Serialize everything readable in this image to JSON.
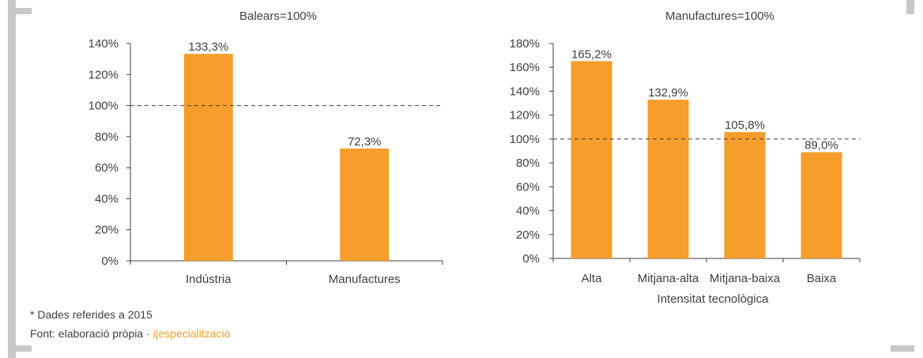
{
  "colors": {
    "bar": "#f59e2b",
    "axis": "#404040",
    "frame": "#c8c8c8",
    "accent": "#f59e2b"
  },
  "chart_data": [
    {
      "type": "bar",
      "title": "Balears=100%",
      "categories": [
        "Indústria",
        "Manufactures"
      ],
      "values": [
        133.3,
        72.3
      ],
      "value_labels": [
        "133,3%",
        "72,3%"
      ],
      "xlabel": "",
      "ylabel": "",
      "ylim": [
        0,
        140
      ],
      "yticks": [
        "0%",
        "20%",
        "40%",
        "60%",
        "80%",
        "100%",
        "120%",
        "140%"
      ],
      "reference_line": 100,
      "grid": false,
      "legend": "none"
    },
    {
      "type": "bar",
      "title": "Manufactures=100%",
      "categories": [
        "Alta",
        "Mitjana-alta",
        "Mitjana-baixa",
        "Baixa"
      ],
      "values": [
        165.2,
        132.9,
        105.8,
        89.0
      ],
      "value_labels": [
        "165,2%",
        "132,9%",
        "105,8%",
        "89,0%"
      ],
      "xlabel": "Intensitat tecnològica",
      "ylabel": "",
      "ylim": [
        0,
        180
      ],
      "yticks": [
        "0%",
        "20%",
        "40%",
        "60%",
        "80%",
        "100%",
        "120%",
        "140%",
        "160%",
        "180%"
      ],
      "reference_line": 100,
      "grid": false,
      "legend": "none"
    }
  ],
  "footnotes": {
    "note": "* Dades referides a 2015",
    "source_prefix": "Font: elaboració pròpia · ",
    "source_brand": "i|especialització"
  }
}
